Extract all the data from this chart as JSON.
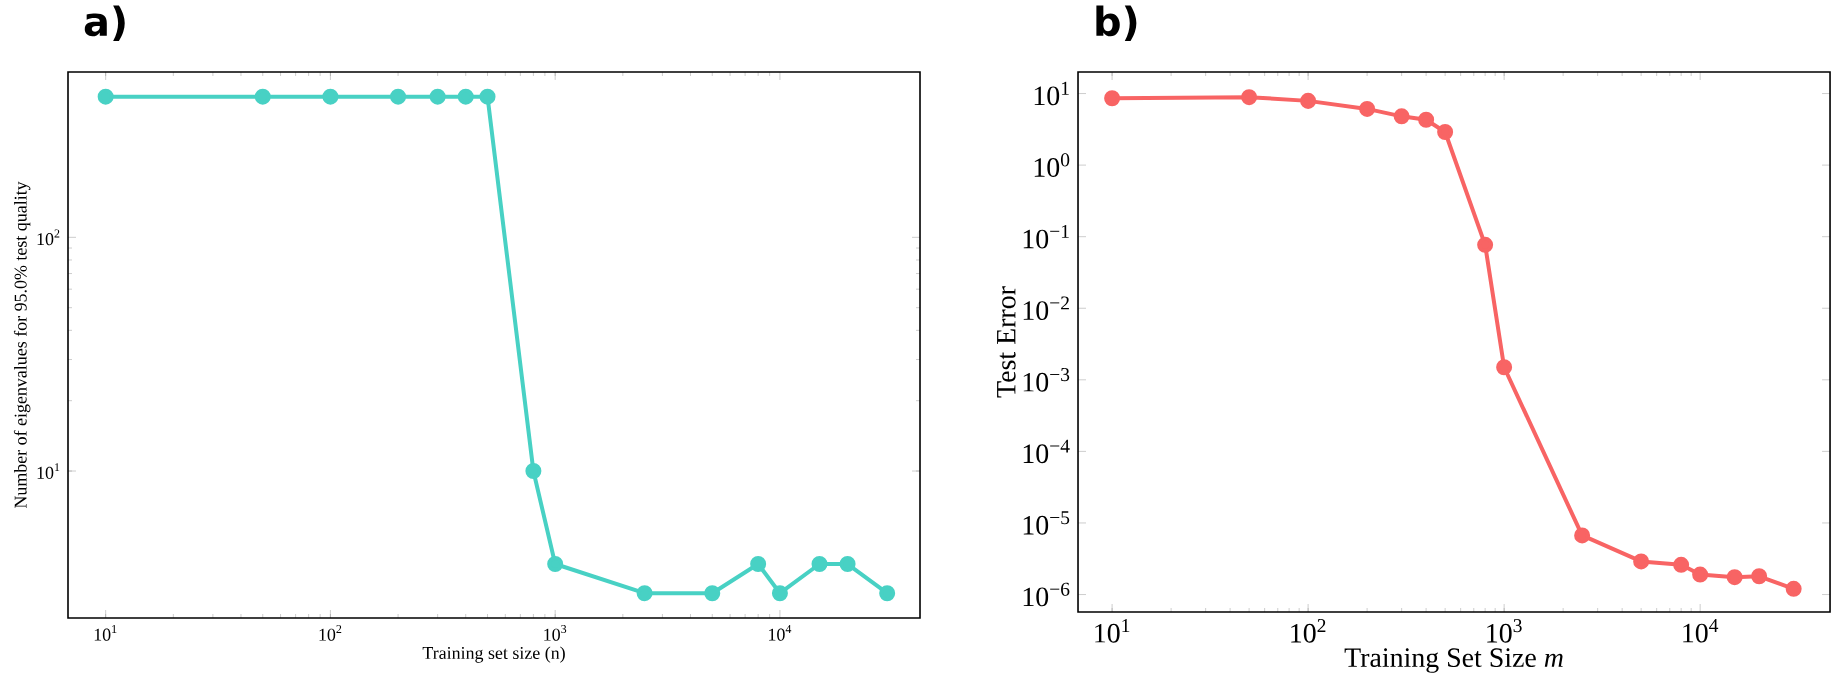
{
  "chart_data": [
    {
      "type": "line",
      "title": "a)",
      "xlabel": "Training set size (n)",
      "ylabel": "Number of eigenvalues for 95.0% test quality",
      "log": "xy",
      "marker": "circle",
      "x": [
        10,
        50,
        100,
        200,
        300,
        400,
        500,
        800,
        1000,
        2500,
        5000,
        8000,
        10000,
        15000,
        20000,
        30000
      ],
      "series": [
        {
          "color": "#48d1c4",
          "values": [
            400,
            400,
            400,
            400,
            400,
            400,
            400,
            10,
            4,
            3,
            3,
            4,
            3,
            4,
            4,
            3
          ]
        }
      ],
      "xlim": [
        6.8,
        42000
      ],
      "ylim": [
        2.35,
        510
      ],
      "xticks": [
        {
          "value": 10,
          "label": "10$^{1}$"
        },
        {
          "value": 100,
          "label": "10$^{2}$"
        },
        {
          "value": 1000,
          "label": "10$^{3}$"
        },
        {
          "value": 10000,
          "label": "10$^{4}$"
        }
      ],
      "yticks": [
        {
          "value": 10,
          "label": "10$^{1}$"
        },
        {
          "value": 100,
          "label": "10$^{2}$"
        }
      ]
    },
    {
      "type": "line",
      "title": "b)",
      "xlabel": "Training Set Size *m*",
      "ylabel": "Test Error",
      "log": "xy",
      "marker": "circle",
      "x": [
        10,
        50,
        100,
        200,
        300,
        400,
        500,
        800,
        1000,
        2500,
        5000,
        8000,
        10000,
        15000,
        20000,
        30000
      ],
      "series": [
        {
          "color": "#f86464",
          "values": [
            8.6,
            8.9,
            7.9,
            6.1,
            4.8,
            4.3,
            2.9,
            0.077,
            0.0015,
            6.7e-06,
            2.9e-06,
            2.6e-06,
            1.9e-06,
            1.75e-06,
            1.8e-06,
            1.2e-06
          ]
        }
      ],
      "xlim": [
        6.7,
        46000
      ],
      "ylim": [
        5.7e-07,
        20
      ],
      "xticks": [
        {
          "value": 10,
          "label": "10$^{1}$"
        },
        {
          "value": 100,
          "label": "10$^{2}$"
        },
        {
          "value": 1000,
          "label": "10$^{3}$"
        },
        {
          "value": 10000,
          "label": "10$^{4}$"
        }
      ],
      "yticks": [
        {
          "value": 10,
          "label": "10$^{1}$"
        },
        {
          "value": 1,
          "label": "10$^{0}$"
        },
        {
          "value": 0.1,
          "label": "10$^{−1}$"
        },
        {
          "value": 0.01,
          "label": "10$^{−2}$"
        },
        {
          "value": 0.001,
          "label": "10$^{−3}$"
        },
        {
          "value": 0.0001,
          "label": "10$^{−4}$"
        },
        {
          "value": 1e-05,
          "label": "10$^{−5}$"
        },
        {
          "value": 1e-06,
          "label": "10$^{−6}$"
        }
      ]
    }
  ]
}
